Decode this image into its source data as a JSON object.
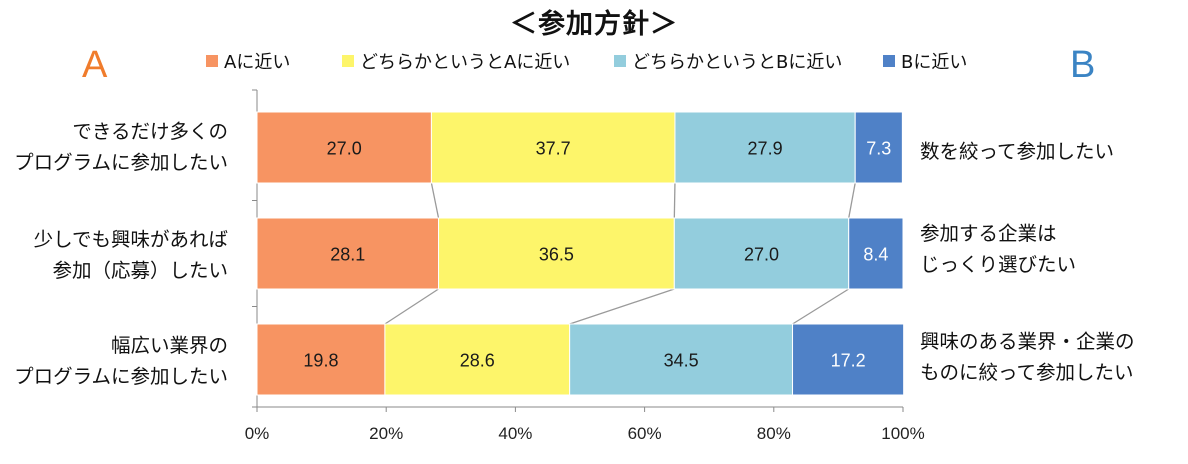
{
  "title": "＜参加方針＞",
  "left_pole": {
    "letter": "A",
    "color": "#f07c2c"
  },
  "right_pole": {
    "letter": "B",
    "color": "#3b84c4"
  },
  "chart_data": {
    "type": "bar",
    "orientation": "horizontal",
    "stacked": true,
    "normalized": true,
    "categories": [
      {
        "left": [
          "できるだけ多くの",
          "プログラムに参加したい"
        ],
        "right": [
          "数を絞って参加したい"
        ]
      },
      {
        "left": [
          "少しでも興味があれば",
          "参加（応募）したい"
        ],
        "right": [
          "参加する企業は",
          "じっくり選びたい"
        ]
      },
      {
        "left": [
          "幅広い業界の",
          "プログラムに参加したい"
        ],
        "right": [
          "興味のある業界・企業の",
          "ものに絞って参加したい"
        ]
      }
    ],
    "series": [
      {
        "name": "Aに近い",
        "color": "#f79462",
        "label_color": "#1a1a1a",
        "values": [
          27.0,
          28.1,
          19.8
        ]
      },
      {
        "name": "どちらかというとAに近い",
        "color": "#fdf56a",
        "label_color": "#1a1a1a",
        "values": [
          37.7,
          36.5,
          28.6
        ]
      },
      {
        "name": "どちらかというとBに近い",
        "color": "#93cddd",
        "label_color": "#1a1a1a",
        "values": [
          27.9,
          27.0,
          34.5
        ]
      },
      {
        "name": "Bに近い",
        "color": "#4f81c7",
        "label_color": "#ffffff",
        "values": [
          7.3,
          8.4,
          17.2
        ]
      }
    ],
    "xlim": [
      0,
      100
    ],
    "xticks": [
      "0%",
      "20%",
      "40%",
      "60%",
      "80%",
      "100%"
    ],
    "series_lines": true,
    "legend_position": "top"
  }
}
